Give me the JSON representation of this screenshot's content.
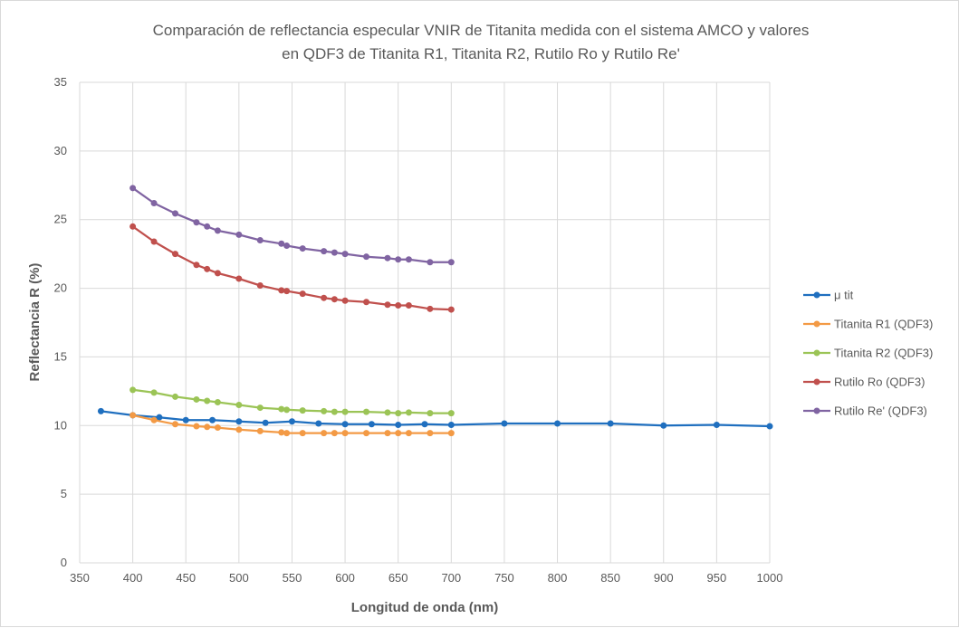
{
  "chart_data": {
    "type": "line",
    "title_lines": [
      "Comparación de reflectancia especular VNIR de Titanita medida con el sistema AMCO y valores",
      "en QDF3  de Titanita R1, Titanita R2, Rutilo Ro y Rutilo Re'"
    ],
    "xlabel": "Longitud de onda (nm)",
    "ylabel": "Reflectancia R (%)",
    "xlim": [
      350,
      1000
    ],
    "ylim": [
      0,
      35
    ],
    "x_ticks": [
      350,
      400,
      450,
      500,
      550,
      600,
      650,
      700,
      750,
      800,
      850,
      900,
      950,
      1000
    ],
    "y_ticks": [
      0,
      5,
      10,
      15,
      20,
      25,
      30,
      35
    ],
    "grid": "both",
    "legend_position": "right",
    "series": [
      {
        "name": "μ tit",
        "color": "#1f6fbf",
        "points": [
          [
            370,
            11.05
          ],
          [
            400,
            10.75
          ],
          [
            425,
            10.6
          ],
          [
            450,
            10.4
          ],
          [
            475,
            10.4
          ],
          [
            500,
            10.3
          ],
          [
            525,
            10.2
          ],
          [
            550,
            10.3
          ],
          [
            575,
            10.15
          ],
          [
            600,
            10.1
          ],
          [
            625,
            10.1
          ],
          [
            650,
            10.05
          ],
          [
            675,
            10.1
          ],
          [
            700,
            10.05
          ],
          [
            750,
            10.15
          ],
          [
            800,
            10.15
          ],
          [
            850,
            10.15
          ],
          [
            900,
            10.0
          ],
          [
            950,
            10.05
          ],
          [
            1000,
            9.95
          ]
        ]
      },
      {
        "name": "Titanita R1 (QDF3)",
        "color": "#f39a45",
        "points": [
          [
            400,
            10.75
          ],
          [
            420,
            10.4
          ],
          [
            440,
            10.1
          ],
          [
            460,
            9.95
          ],
          [
            470,
            9.9
          ],
          [
            480,
            9.85
          ],
          [
            500,
            9.7
          ],
          [
            520,
            9.6
          ],
          [
            540,
            9.5
          ],
          [
            545,
            9.45
          ],
          [
            560,
            9.45
          ],
          [
            580,
            9.45
          ],
          [
            590,
            9.45
          ],
          [
            600,
            9.45
          ],
          [
            620,
            9.45
          ],
          [
            640,
            9.45
          ],
          [
            650,
            9.45
          ],
          [
            660,
            9.45
          ],
          [
            680,
            9.45
          ],
          [
            700,
            9.45
          ]
        ]
      },
      {
        "name": "Titanita R2 (QDF3)",
        "color": "#9bc456",
        "points": [
          [
            400,
            12.6
          ],
          [
            420,
            12.4
          ],
          [
            440,
            12.1
          ],
          [
            460,
            11.9
          ],
          [
            470,
            11.8
          ],
          [
            480,
            11.7
          ],
          [
            500,
            11.5
          ],
          [
            520,
            11.3
          ],
          [
            540,
            11.2
          ],
          [
            545,
            11.15
          ],
          [
            560,
            11.1
          ],
          [
            580,
            11.05
          ],
          [
            590,
            11.0
          ],
          [
            600,
            11.0
          ],
          [
            620,
            11.0
          ],
          [
            640,
            10.95
          ],
          [
            650,
            10.9
          ],
          [
            660,
            10.95
          ],
          [
            680,
            10.9
          ],
          [
            700,
            10.9
          ]
        ]
      },
      {
        "name": "Rutilo Ro (QDF3)",
        "color": "#c0504d",
        "points": [
          [
            400,
            24.5
          ],
          [
            420,
            23.4
          ],
          [
            440,
            22.5
          ],
          [
            460,
            21.7
          ],
          [
            470,
            21.4
          ],
          [
            480,
            21.1
          ],
          [
            500,
            20.7
          ],
          [
            520,
            20.2
          ],
          [
            540,
            19.85
          ],
          [
            545,
            19.8
          ],
          [
            560,
            19.6
          ],
          [
            580,
            19.3
          ],
          [
            590,
            19.2
          ],
          [
            600,
            19.1
          ],
          [
            620,
            19.0
          ],
          [
            640,
            18.8
          ],
          [
            650,
            18.75
          ],
          [
            660,
            18.75
          ],
          [
            680,
            18.5
          ],
          [
            700,
            18.45
          ]
        ]
      },
      {
        "name": "Rutilo Re' (QDF3)",
        "color": "#8064a2",
        "points": [
          [
            400,
            27.3
          ],
          [
            420,
            26.2
          ],
          [
            440,
            25.45
          ],
          [
            460,
            24.8
          ],
          [
            470,
            24.5
          ],
          [
            480,
            24.2
          ],
          [
            500,
            23.9
          ],
          [
            520,
            23.5
          ],
          [
            540,
            23.25
          ],
          [
            545,
            23.1
          ],
          [
            560,
            22.9
          ],
          [
            580,
            22.7
          ],
          [
            590,
            22.6
          ],
          [
            600,
            22.5
          ],
          [
            620,
            22.3
          ],
          [
            640,
            22.2
          ],
          [
            650,
            22.1
          ],
          [
            660,
            22.1
          ],
          [
            680,
            21.9
          ],
          [
            700,
            21.9
          ]
        ]
      }
    ]
  }
}
